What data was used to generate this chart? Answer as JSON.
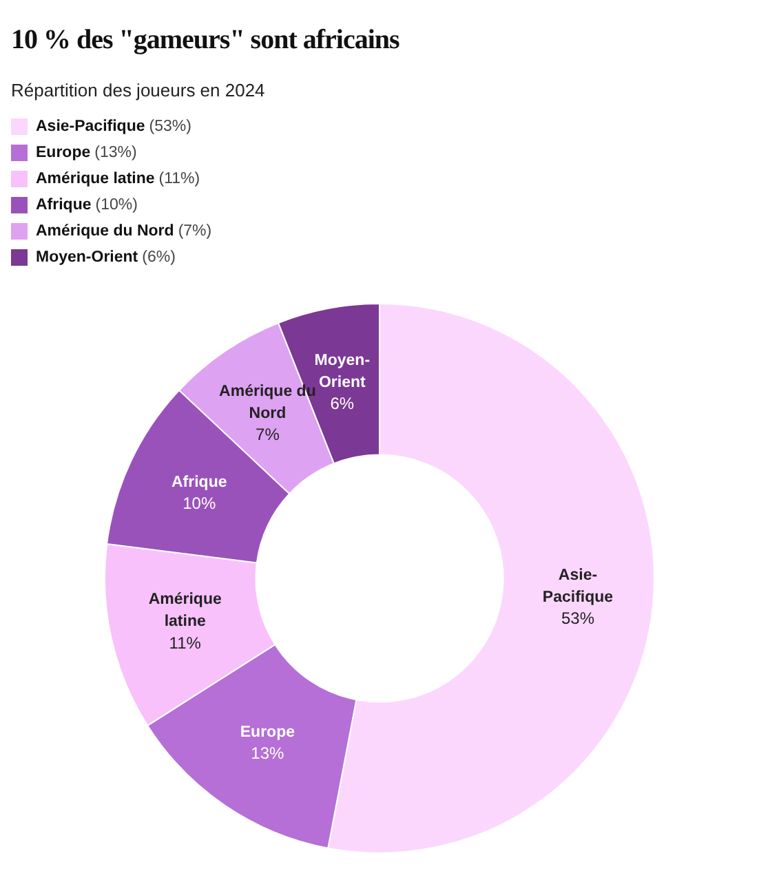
{
  "chart_data": {
    "type": "donut",
    "title": "10 % des \"gameurs\" sont africains",
    "subtitle": "Répartition des joueurs en 2024",
    "categories": [
      "Asie-Pacifique",
      "Europe",
      "Amérique latine",
      "Afrique",
      "Amérique du Nord",
      "Moyen-Orient"
    ],
    "values": [
      53,
      13,
      11,
      10,
      7,
      6
    ],
    "colors": [
      "#fcd7fd",
      "#b56fd6",
      "#f8c1fb",
      "#9a52bb",
      "#dea2f2",
      "#7b3894"
    ],
    "value_labels": [
      "53%",
      "13%",
      "11%",
      "10%",
      "7%",
      "6%"
    ],
    "annotations": [
      "(53%)",
      "(13%)",
      "(11%)",
      "(10%)",
      "(7%)",
      "(6%)"
    ],
    "legend": "top left"
  }
}
